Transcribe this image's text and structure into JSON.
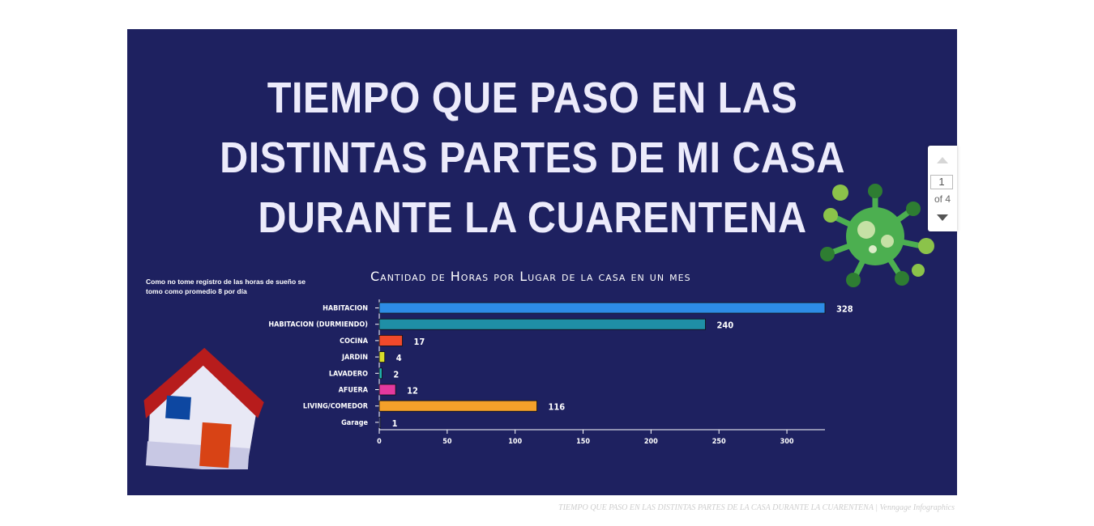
{
  "title_lines": [
    "TIEMPO QUE PASO EN LAS",
    "DISTINTAS PARTES DE MI CASA",
    "DURANTE LA CUARENTENA"
  ],
  "note": "Como no tome registro de las horas de sueño se\ntomo como promedio 8 por día",
  "chart_data": {
    "type": "bar",
    "orientation": "horizontal",
    "title": "Cantidad de Horas por Lugar de la casa en un mes",
    "categories": [
      "HABITACION",
      "HABITACION (DURMIENDO)",
      "COCINA",
      "JARDIN",
      "LAVADERO",
      "AFUERA",
      "LIVING/COMEDOR",
      "Garage"
    ],
    "values": [
      328,
      240,
      17,
      4,
      2,
      12,
      116,
      1
    ],
    "colors": [
      "#2d8ce6",
      "#1f8fa6",
      "#f0492b",
      "#d8dc2a",
      "#1fb4b0",
      "#e4399e",
      "#f4a02a",
      "#5c6bc0"
    ],
    "xlim": [
      0,
      328
    ],
    "xticks": [
      0,
      50,
      100,
      150,
      200,
      250,
      300
    ],
    "xlabel": "",
    "ylabel": "",
    "grid": false,
    "legend": "none"
  },
  "colors": {
    "background": "#1e2160",
    "title": "#ecebfb",
    "house_roof": "#b71c1c",
    "house_door": "#d84315",
    "house_window": "#0d47a1",
    "virus_green": "#4caf50",
    "virus_light": "#8bc34a"
  },
  "illustrations": [
    "house-icon",
    "virus-icon"
  ],
  "pager": {
    "current": "1",
    "of_label": "of 4"
  },
  "credit": "TIEMPO QUE PASO EN LAS DISTINTAS PARTES DE LA CASA DURANTE LA CUARENTENA | Venngage Infographics"
}
